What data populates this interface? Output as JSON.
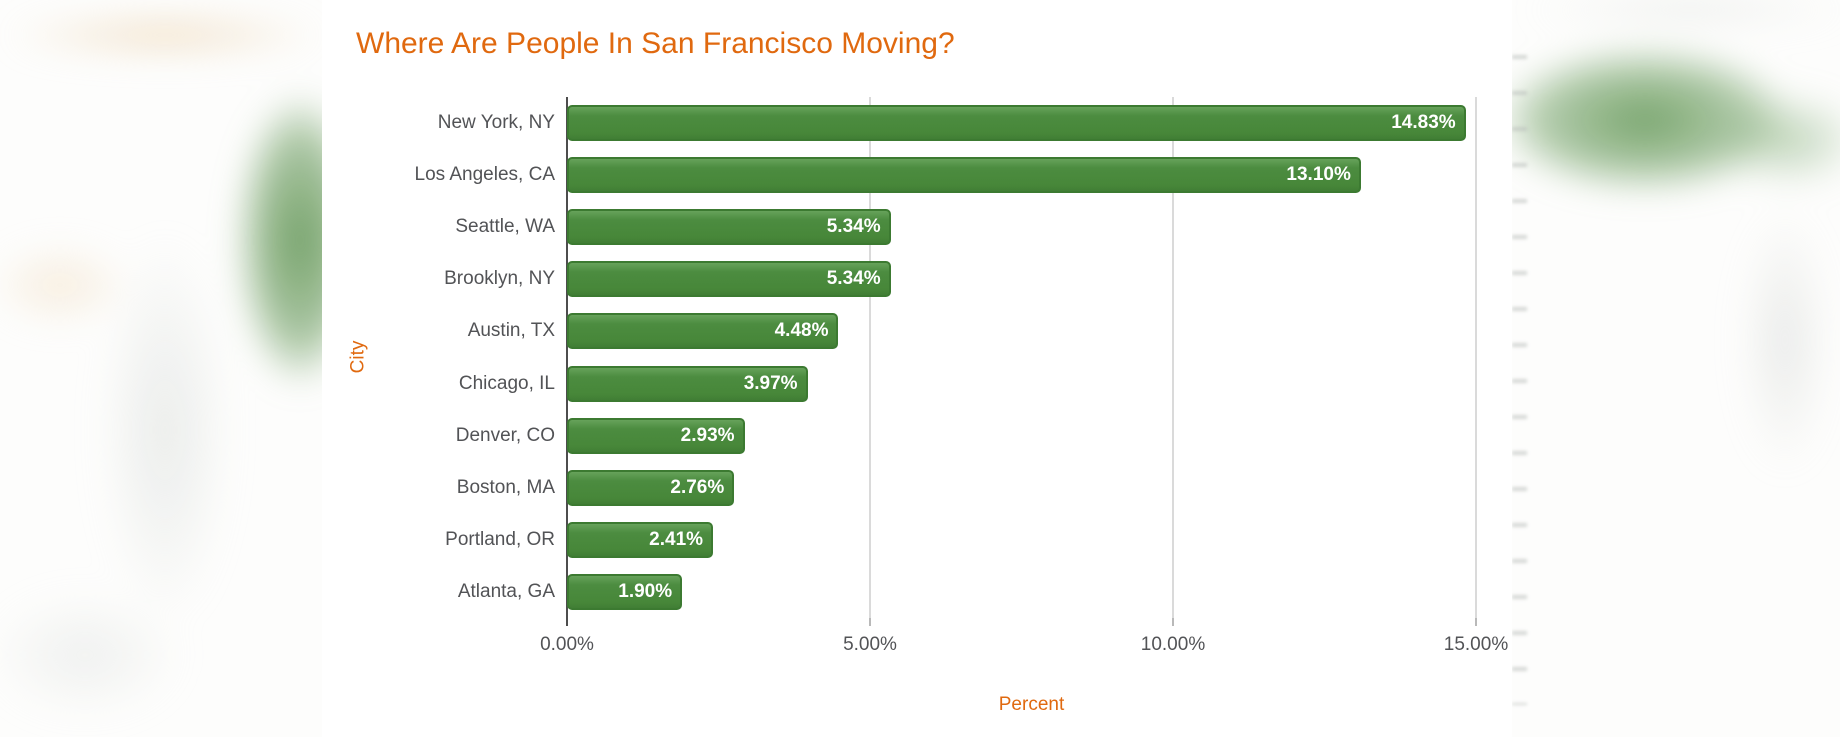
{
  "chart_data": {
    "type": "bar",
    "orientation": "horizontal",
    "title": "Where Are People In San Francisco Moving?",
    "xlabel": "Percent",
    "ylabel": "City",
    "categories": [
      "New York, NY",
      "Los Angeles, CA",
      "Seattle, WA",
      "Brooklyn, NY",
      "Austin, TX",
      "Chicago, IL",
      "Denver, CO",
      "Boston, MA",
      "Portland, OR",
      "Atlanta, GA"
    ],
    "values": [
      14.83,
      13.1,
      5.34,
      5.34,
      4.48,
      3.97,
      2.93,
      2.76,
      2.41,
      1.9
    ],
    "value_labels": [
      "14.83%",
      "13.10%",
      "5.34%",
      "5.34%",
      "4.48%",
      "3.97%",
      "2.93%",
      "2.76%",
      "2.41%",
      "1.90%"
    ],
    "x_ticks": [
      {
        "value": 0,
        "label": "0.00%"
      },
      {
        "value": 5,
        "label": "5.00%"
      },
      {
        "value": 10,
        "label": "10.00%"
      },
      {
        "value": 15,
        "label": "15.00%"
      }
    ],
    "xlim": [
      0,
      15.33
    ],
    "grid": "vertical-gridlines-only",
    "legend": "none",
    "colors": {
      "bar_fill": "#4c8c40",
      "bar_border": "#3c7a31",
      "value_label": "#ffffff",
      "title": "#e0690f",
      "axis_title": "#e0690f",
      "tick_label": "#525356",
      "category_label": "#525356",
      "gridline": "#dadada",
      "axis_line": "#4d4d4d",
      "chart_background": "#ffffff"
    }
  }
}
